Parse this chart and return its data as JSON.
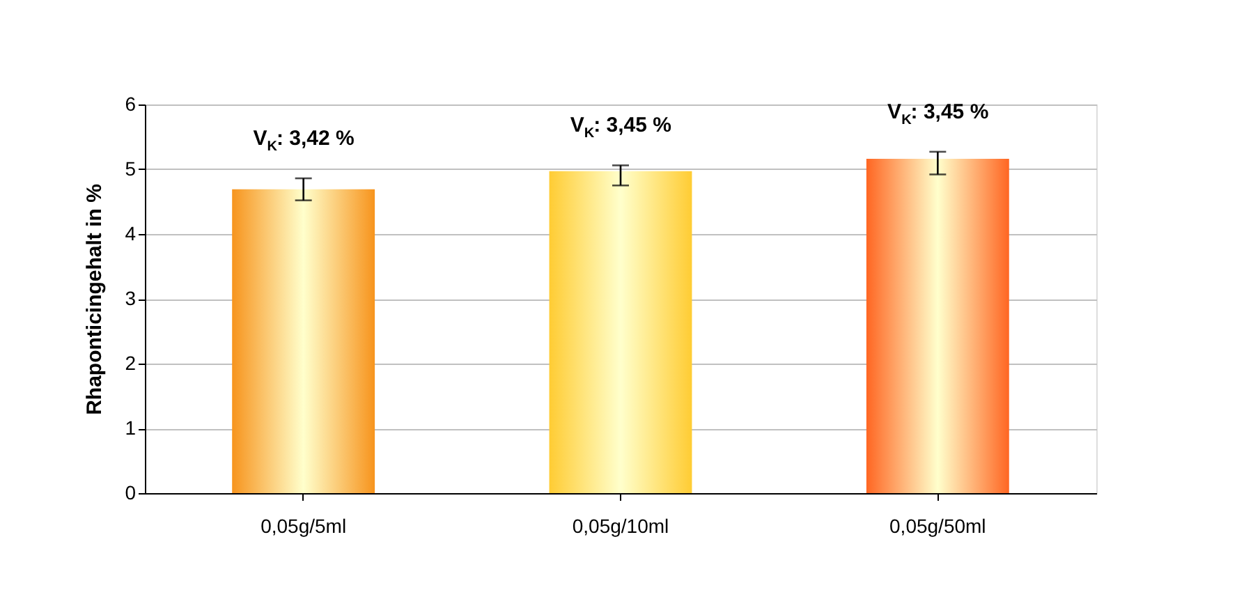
{
  "chart_data": {
    "type": "bar",
    "ylabel": "Rhaponticingehalt in %",
    "categories": [
      "0,05g/5ml",
      "0,05g/10ml",
      "0,05g/50ml"
    ],
    "values": [
      4.69,
      4.97,
      5.16
    ],
    "colors": [
      "#f7941d",
      "#ffcc33",
      "#ff6622"
    ],
    "errors": [
      [
        4.52,
        4.86
      ],
      [
        4.75,
        5.06
      ],
      [
        4.92,
        5.27
      ]
    ],
    "ylim": [
      0,
      6
    ],
    "yticks": [
      0,
      1,
      2,
      3,
      4,
      5,
      6
    ],
    "grid": "y",
    "annotations": [
      "V$_{K}$: 3,42 %",
      "V$_{K}$: 3,45 %",
      "V$_{K}$: 3,45 %"
    ]
  }
}
